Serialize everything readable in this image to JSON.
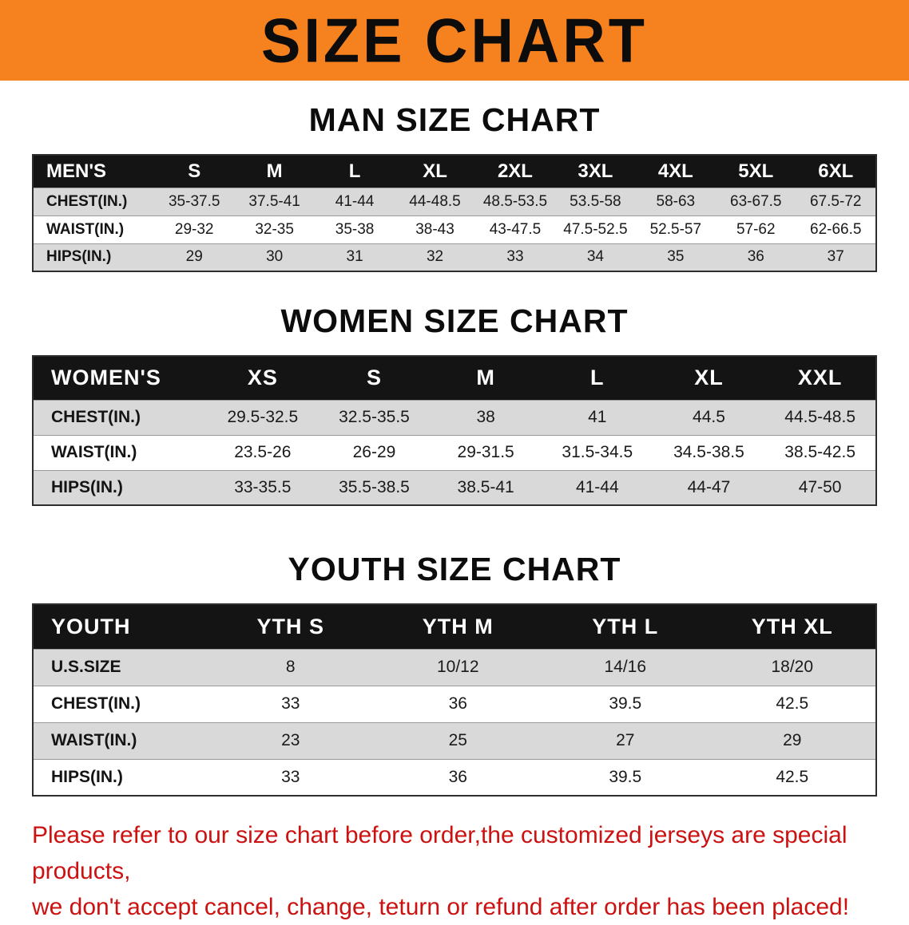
{
  "banner": {
    "title": "SIZE CHART"
  },
  "sections": [
    {
      "heading": "MAN SIZE CHART",
      "table": {
        "header": [
          "MEN'S",
          "S",
          "M",
          "L",
          "XL",
          "2XL",
          "3XL",
          "4XL",
          "5XL",
          "6XL"
        ],
        "rows": [
          [
            "CHEST(IN.)",
            "35-37.5",
            "37.5-41",
            "41-44",
            "44-48.5",
            "48.5-53.5",
            "53.5-58",
            "58-63",
            "63-67.5",
            "67.5-72"
          ],
          [
            "WAIST(IN.)",
            "29-32",
            "32-35",
            "35-38",
            "38-43",
            "43-47.5",
            "47.5-52.5",
            "52.5-57",
            "57-62",
            "62-66.5"
          ],
          [
            "HIPS(IN.)",
            "29",
            "30",
            "31",
            "32",
            "33",
            "34",
            "35",
            "36",
            "37"
          ]
        ]
      }
    },
    {
      "heading": "WOMEN SIZE CHART",
      "table": {
        "header": [
          "WOMEN'S",
          "XS",
          "S",
          "M",
          "L",
          "XL",
          "XXL"
        ],
        "rows": [
          [
            "CHEST(IN.)",
            "29.5-32.5",
            "32.5-35.5",
            "38",
            "41",
            "44.5",
            "44.5-48.5"
          ],
          [
            "WAIST(IN.)",
            "23.5-26",
            "26-29",
            "29-31.5",
            "31.5-34.5",
            "34.5-38.5",
            "38.5-42.5"
          ],
          [
            "HIPS(IN.)",
            "33-35.5",
            "35.5-38.5",
            "38.5-41",
            "41-44",
            "44-47",
            "47-50"
          ]
        ]
      }
    },
    {
      "heading": "YOUTH SIZE CHART",
      "table": {
        "header": [
          "YOUTH",
          "YTH S",
          "YTH M",
          "YTH L",
          "YTH XL"
        ],
        "rows": [
          [
            "U.S.SIZE",
            "8",
            "10/12",
            "14/16",
            "18/20"
          ],
          [
            "CHEST(IN.)",
            "33",
            "36",
            "39.5",
            "42.5"
          ],
          [
            "WAIST(IN.)",
            "23",
            "25",
            "27",
            "29"
          ],
          [
            "HIPS(IN.)",
            "33",
            "36",
            "39.5",
            "42.5"
          ]
        ]
      }
    }
  ],
  "disclaimer": {
    "line1": "Please refer to our size chart before order,the customized jerseys are special products,",
    "line2": "we don't accept cancel, change, teturn or refund after order has been placed!"
  },
  "colors": {
    "banner-bg": "#f5821f",
    "header-bg": "#141414",
    "stripe": "#d9d9d9",
    "disclaimer": "#cc1111"
  }
}
